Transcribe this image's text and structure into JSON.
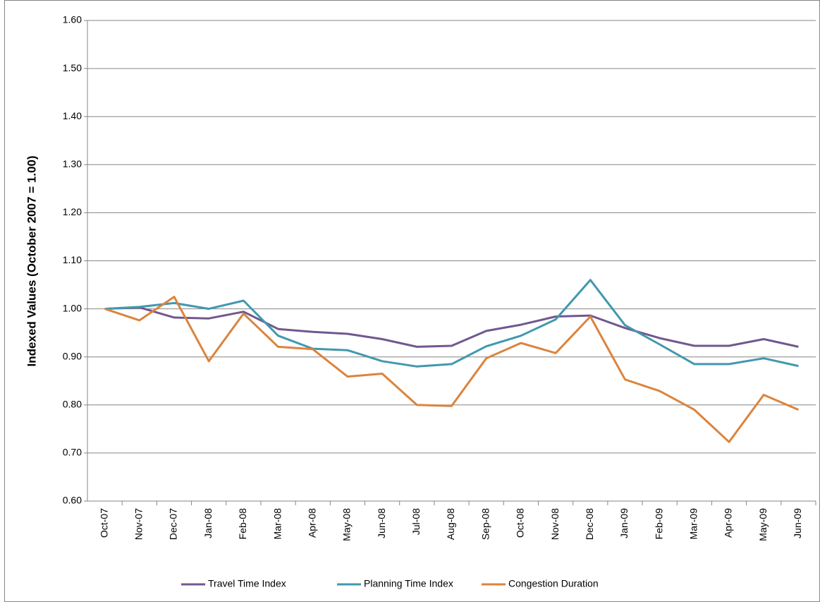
{
  "chart_data": {
    "type": "line",
    "y_label": "Indexed Values (October 2007 = 1.00)",
    "categories": [
      "Oct-07",
      "Nov-07",
      "Dec-07",
      "Jan-08",
      "Feb-08",
      "Mar-08",
      "Apr-08",
      "May-08",
      "Jun-08",
      "Jul-08",
      "Aug-08",
      "Sep-08",
      "Oct-08",
      "Nov-08",
      "Dec-08",
      "Jan-09",
      "Feb-09",
      "Mar-09",
      "Apr-09",
      "May-09",
      "Jun-09"
    ],
    "series": [
      {
        "name": "Travel Time Index",
        "color": "#71588f",
        "values": [
          1.0,
          1.003,
          0.982,
          0.98,
          0.994,
          0.958,
          0.952,
          0.948,
          0.937,
          0.921,
          0.923,
          0.954,
          0.967,
          0.984,
          0.986,
          0.96,
          0.939,
          0.923,
          0.923,
          0.937,
          0.921
        ]
      },
      {
        "name": "Planning Time Index",
        "color": "#4198af",
        "values": [
          1.0,
          1.004,
          1.012,
          1.0,
          1.017,
          0.944,
          0.917,
          0.914,
          0.891,
          0.88,
          0.885,
          0.922,
          0.944,
          0.978,
          1.06,
          0.966,
          0.926,
          0.885,
          0.885,
          0.897,
          0.881
        ]
      },
      {
        "name": "Congestion Duration",
        "color": "#db843d",
        "values": [
          1.0,
          0.976,
          1.025,
          0.891,
          0.99,
          0.921,
          0.916,
          0.859,
          0.865,
          0.8,
          0.798,
          0.897,
          0.929,
          0.908,
          0.984,
          0.853,
          0.829,
          0.79,
          0.723,
          0.821,
          0.79
        ]
      }
    ],
    "ylim": [
      0.6,
      1.6
    ],
    "yticks": [
      {
        "value": 0.6,
        "label": "0.60"
      },
      {
        "value": 0.7,
        "label": "0.70"
      },
      {
        "value": 0.8,
        "label": "0.80"
      },
      {
        "value": 0.9,
        "label": "0.90"
      },
      {
        "value": 1.0,
        "label": "1.00"
      },
      {
        "value": 1.1,
        "label": "1.10"
      },
      {
        "value": 1.2,
        "label": "1.20"
      },
      {
        "value": 1.3,
        "label": "1.30"
      },
      {
        "value": 1.4,
        "label": "1.40"
      },
      {
        "value": 1.5,
        "label": "1.50"
      },
      {
        "value": 1.6,
        "label": "1.60"
      }
    ],
    "grid": true,
    "legend": "bottom"
  }
}
